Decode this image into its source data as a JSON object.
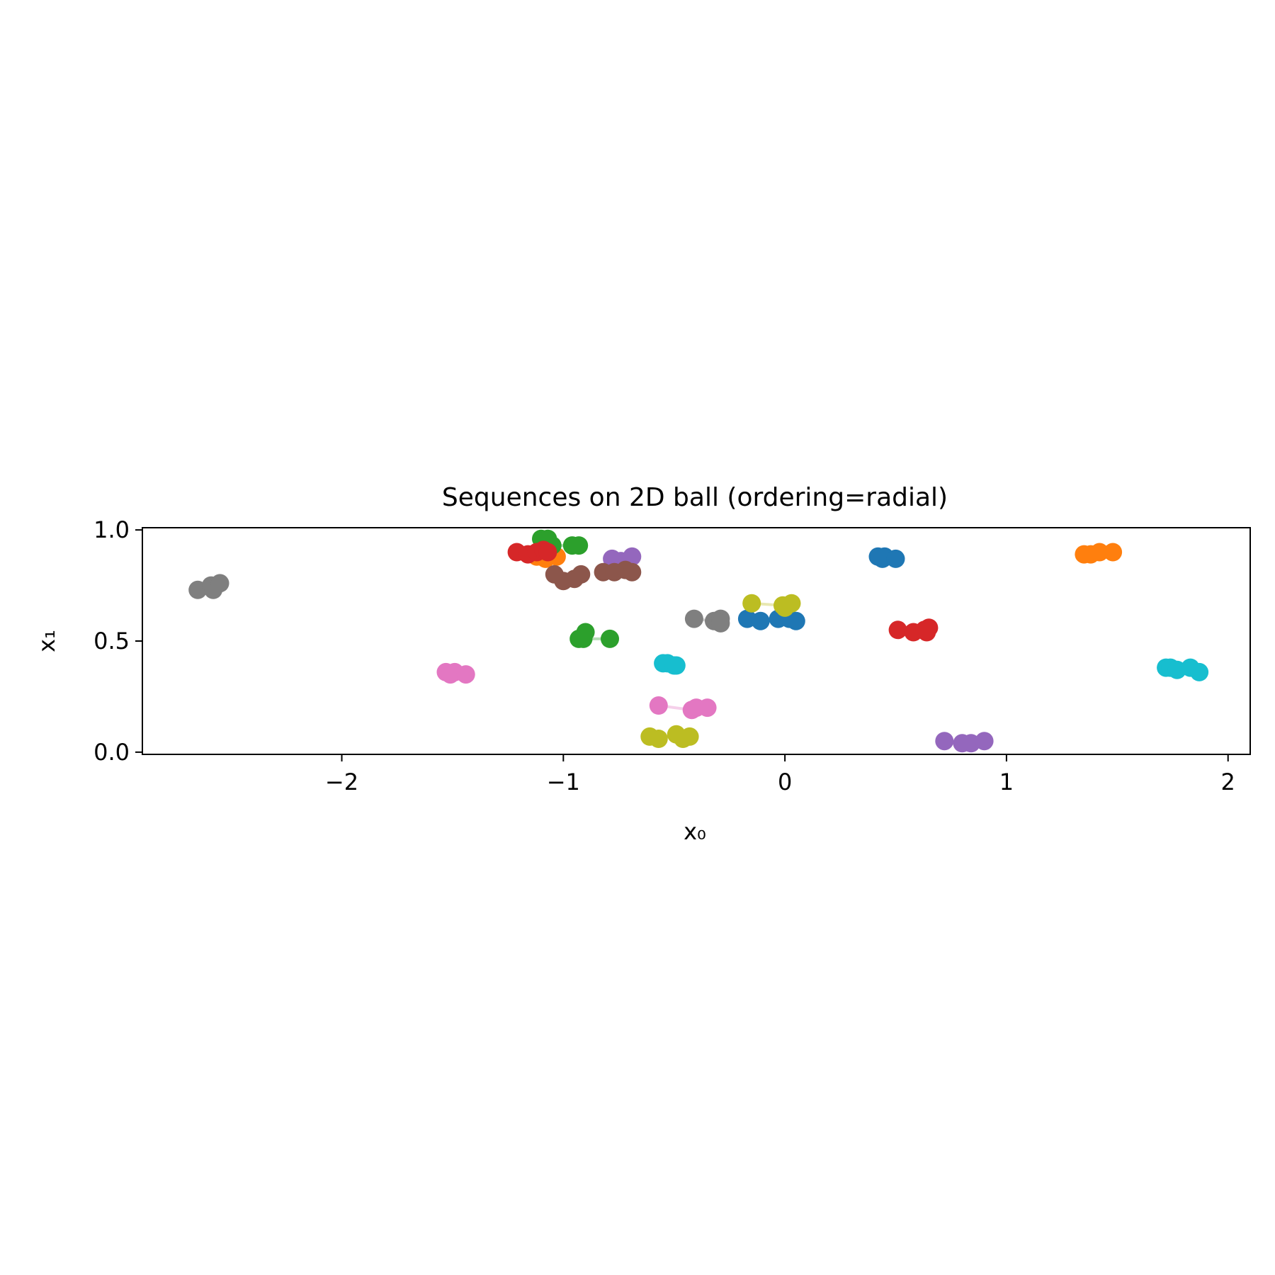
{
  "chart_data": {
    "type": "scatter",
    "title": "Sequences on 2D ball (ordering=radial)",
    "xlabel": "x₀",
    "ylabel": "x₁",
    "xlim": [
      -2.9,
      2.1
    ],
    "ylim": [
      -0.01,
      1.01
    ],
    "xticks": [
      -2,
      -1,
      0,
      1,
      2
    ],
    "xtick_labels": [
      "−2",
      "−1",
      "0",
      "1",
      "2"
    ],
    "yticks": [
      0.0,
      0.5,
      1.0
    ],
    "ytick_labels": [
      "0.0",
      "0.5",
      "1.0"
    ],
    "grid": false,
    "series": [
      {
        "color": "#1f77b4",
        "points": [
          [
            -0.17,
            0.6
          ],
          [
            -0.11,
            0.59
          ],
          [
            -0.03,
            0.6
          ],
          [
            0.05,
            0.59
          ],
          [
            0.02,
            0.6
          ]
        ]
      },
      {
        "color": "#1f77b4",
        "points": [
          [
            0.42,
            0.88
          ],
          [
            0.45,
            0.88
          ],
          [
            0.44,
            0.87
          ],
          [
            0.5,
            0.87
          ]
        ]
      },
      {
        "color": "#ff7f0e",
        "points": [
          [
            -1.12,
            0.88
          ],
          [
            -1.08,
            0.87
          ],
          [
            -1.03,
            0.88
          ],
          [
            -1.1,
            0.89
          ]
        ]
      },
      {
        "color": "#ff7f0e",
        "points": [
          [
            1.35,
            0.89
          ],
          [
            1.38,
            0.89
          ],
          [
            1.42,
            0.9
          ],
          [
            1.48,
            0.9
          ]
        ]
      },
      {
        "color": "#2ca02c",
        "points": [
          [
            -1.1,
            0.96
          ],
          [
            -1.07,
            0.96
          ],
          [
            -1.05,
            0.93
          ],
          [
            -0.96,
            0.93
          ],
          [
            -0.93,
            0.93
          ]
        ]
      },
      {
        "color": "#2ca02c",
        "points": [
          [
            -0.93,
            0.51
          ],
          [
            -0.9,
            0.54
          ],
          [
            -0.91,
            0.51
          ],
          [
            -0.79,
            0.51
          ]
        ]
      },
      {
        "color": "#d62728",
        "points": [
          [
            -1.21,
            0.9
          ],
          [
            -1.16,
            0.89
          ],
          [
            -1.12,
            0.9
          ],
          [
            -1.09,
            0.91
          ],
          [
            -1.07,
            0.9
          ]
        ]
      },
      {
        "color": "#d62728",
        "points": [
          [
            0.51,
            0.55
          ],
          [
            0.58,
            0.54
          ],
          [
            0.64,
            0.54
          ],
          [
            0.65,
            0.56
          ],
          [
            0.63,
            0.55
          ]
        ]
      },
      {
        "color": "#9467bd",
        "points": [
          [
            -0.78,
            0.87
          ],
          [
            -0.74,
            0.86
          ],
          [
            -0.71,
            0.86
          ],
          [
            -0.69,
            0.88
          ]
        ]
      },
      {
        "color": "#9467bd",
        "points": [
          [
            0.72,
            0.05
          ],
          [
            0.8,
            0.04
          ],
          [
            0.84,
            0.04
          ],
          [
            0.9,
            0.05
          ]
        ]
      },
      {
        "color": "#8c564b",
        "points": [
          [
            -1.04,
            0.8
          ],
          [
            -1.0,
            0.77
          ],
          [
            -0.95,
            0.78
          ],
          [
            -0.92,
            0.8
          ]
        ]
      },
      {
        "color": "#8c564b",
        "points": [
          [
            -0.82,
            0.81
          ],
          [
            -0.77,
            0.81
          ],
          [
            -0.72,
            0.82
          ],
          [
            -0.69,
            0.81
          ]
        ]
      },
      {
        "color": "#e377c2",
        "points": [
          [
            -1.53,
            0.36
          ],
          [
            -1.51,
            0.35
          ],
          [
            -1.49,
            0.36
          ],
          [
            -1.44,
            0.35
          ]
        ]
      },
      {
        "color": "#e377c2",
        "points": [
          [
            -0.57,
            0.21
          ],
          [
            -0.42,
            0.19
          ],
          [
            -0.4,
            0.2
          ],
          [
            -0.35,
            0.2
          ]
        ]
      },
      {
        "color": "#7f7f7f",
        "points": [
          [
            -2.65,
            0.73
          ],
          [
            -2.59,
            0.75
          ],
          [
            -2.58,
            0.73
          ],
          [
            -2.55,
            0.76
          ]
        ]
      },
      {
        "color": "#7f7f7f",
        "points": [
          [
            -0.41,
            0.6
          ],
          [
            -0.32,
            0.59
          ],
          [
            -0.29,
            0.6
          ],
          [
            -0.29,
            0.58
          ]
        ]
      },
      {
        "color": "#bcbd22",
        "points": [
          [
            -0.15,
            0.67
          ],
          [
            -0.01,
            0.66
          ],
          [
            0.0,
            0.65
          ],
          [
            0.03,
            0.67
          ]
        ]
      },
      {
        "color": "#bcbd22",
        "points": [
          [
            -0.61,
            0.07
          ],
          [
            -0.57,
            0.06
          ],
          [
            -0.49,
            0.08
          ],
          [
            -0.46,
            0.06
          ],
          [
            -0.43,
            0.07
          ]
        ]
      },
      {
        "color": "#17becf",
        "points": [
          [
            -0.55,
            0.4
          ],
          [
            -0.53,
            0.4
          ],
          [
            -0.5,
            0.39
          ],
          [
            -0.49,
            0.39
          ]
        ]
      },
      {
        "color": "#17becf",
        "points": [
          [
            1.72,
            0.38
          ],
          [
            1.74,
            0.38
          ],
          [
            1.77,
            0.37
          ],
          [
            1.83,
            0.38
          ],
          [
            1.87,
            0.36
          ]
        ]
      }
    ]
  }
}
